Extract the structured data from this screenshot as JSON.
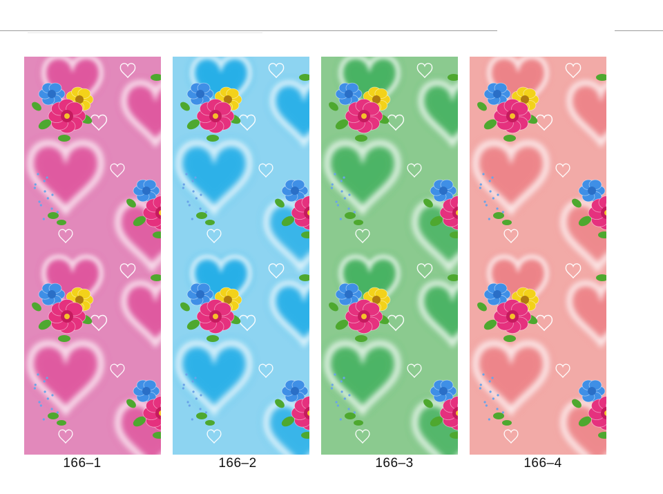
{
  "swatches": [
    {
      "code": "166–1",
      "background": "#e289bb",
      "heart_fill": "#df4f9a"
    },
    {
      "code": "166–2",
      "background": "#8dd4f1",
      "heart_fill": "#16a9e6"
    },
    {
      "code": "166–3",
      "background": "#8bca8f",
      "heart_fill": "#3eaf5b"
    },
    {
      "code": "166–4",
      "background": "#f2aaa7",
      "heart_fill": "#ec7d83"
    }
  ],
  "flower_colors": {
    "blue": "#3f8fe6",
    "yellow": "#f3d21a",
    "pink": "#e5317e",
    "leaf": "#4ea82f"
  }
}
